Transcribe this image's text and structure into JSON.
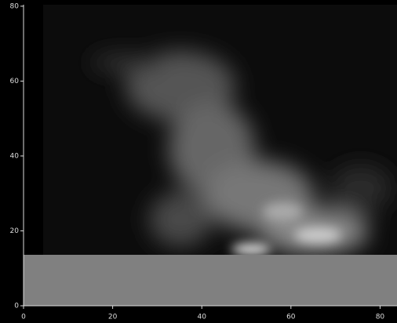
{
  "chart_data": {
    "type": "image",
    "xlim": [
      0,
      83.8
    ],
    "xticks": [
      0,
      20,
      40,
      60,
      80
    ],
    "ylim": [
      0,
      80.4
    ],
    "yticks": [
      0,
      20,
      40,
      60,
      80
    ]
  }
}
